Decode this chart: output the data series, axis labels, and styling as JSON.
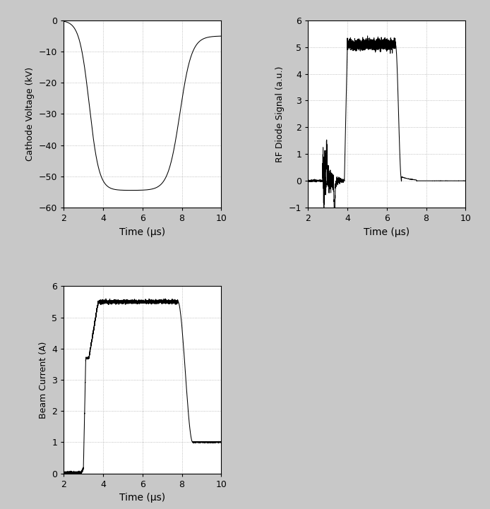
{
  "fig_width": 6.94,
  "fig_height": 7.21,
  "background_color": "#c8c8c8",
  "plot_bg_color": "#ffffff",
  "line_color": "#000000",
  "grid_color": "#999999",
  "xlim": [
    2,
    10
  ],
  "xticks": [
    2,
    4,
    6,
    8,
    10
  ],
  "xlabel": "Time (μs)",
  "subplot1": {
    "ylabel": "Cathode Voltage (kV)",
    "ylim": [
      -60,
      0
    ],
    "yticks": [
      0,
      -10,
      -20,
      -30,
      -40,
      -50,
      -60
    ]
  },
  "subplot2": {
    "ylabel": "RF Diode Signal (a.u.)",
    "ylim": [
      -1,
      6
    ],
    "yticks": [
      -1,
      0,
      1,
      2,
      3,
      4,
      5,
      6
    ]
  },
  "subplot3": {
    "ylabel": "Beam Current (A)",
    "ylim": [
      0,
      6
    ],
    "yticks": [
      0,
      1,
      2,
      3,
      4,
      5,
      6
    ]
  }
}
